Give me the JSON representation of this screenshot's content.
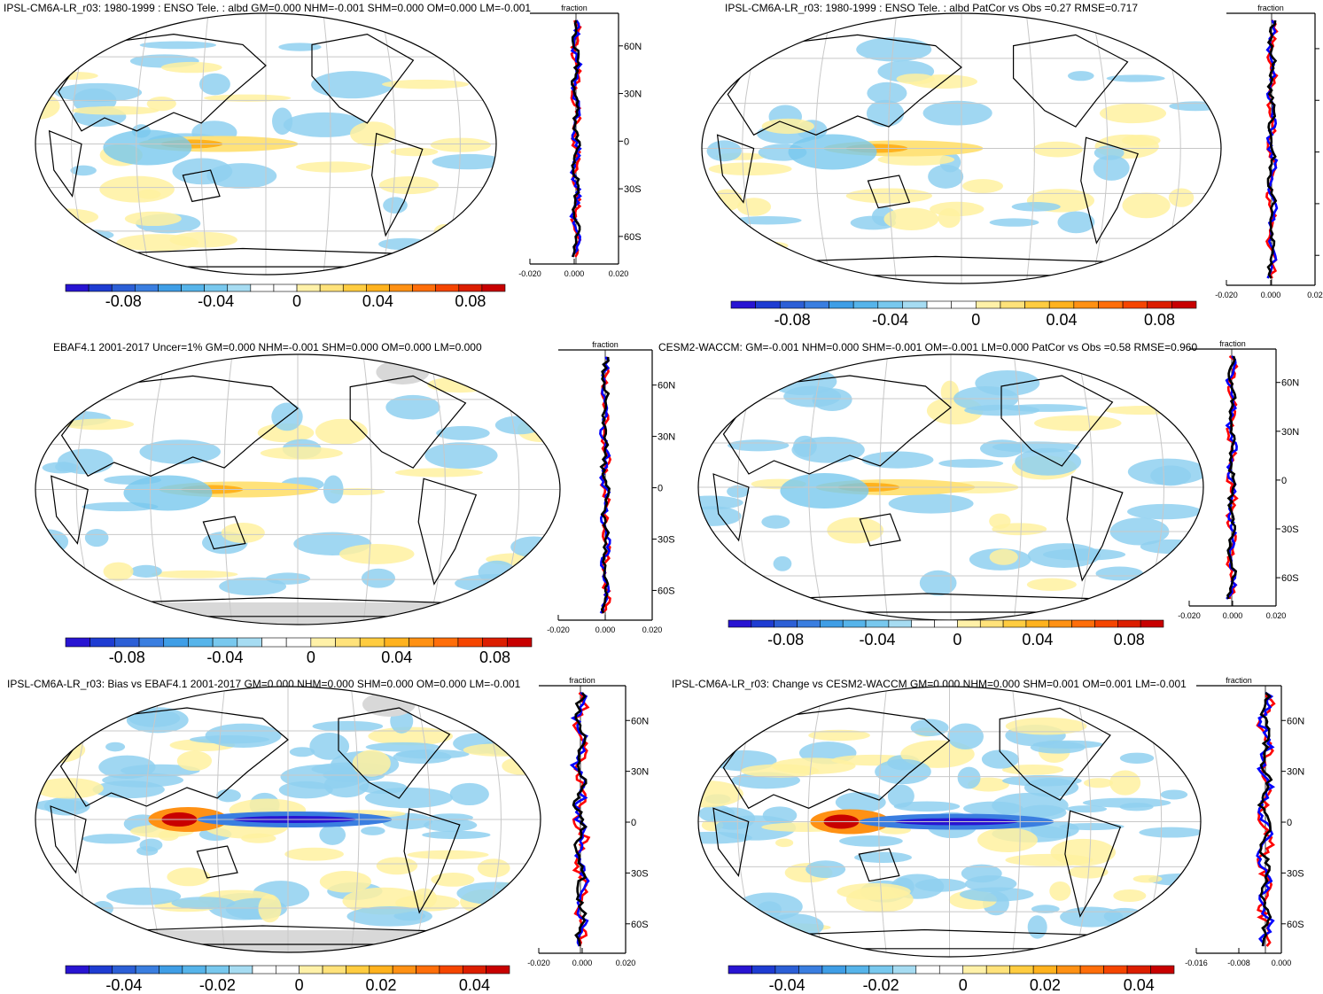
{
  "figure": {
    "colorbar_colors": [
      "#2814d2",
      "#1e3cd2",
      "#2c5fd6",
      "#3a7ee0",
      "#3f9ee6",
      "#56b4ea",
      "#78c8ee",
      "#a6dcf2",
      "#ffffff",
      "#ffffff",
      "#fff1a8",
      "#ffe27a",
      "#ffcc40",
      "#ffb21e",
      "#ff9114",
      "#ff6e0a",
      "#f54500",
      "#dc1e00",
      "#c80000"
    ],
    "colors": {
      "red": "#ff0000",
      "blue": "#0000ff",
      "black": "#000000",
      "land_mask": "#d8d8d8"
    }
  },
  "panels": [
    {
      "id": "p1",
      "title": "IPSL-CM6A-LR_r03: 1980-1999 : ENSO Tele. : albd GM=0.000 NHM=-0.001 SHM=0.000 OM=0.000 LM=-0.001",
      "colorbar_labels": [
        "-0.08",
        "-0.04",
        "0",
        "0.04",
        "0.08"
      ],
      "profile_label": "fraction",
      "profile_xticks": [
        "-0.020",
        "0.000",
        "0.020"
      ],
      "lat_labels": [
        "60N",
        "30N",
        "0",
        "30S",
        "60S"
      ],
      "masked": false
    },
    {
      "id": "p2",
      "title": "IPSL-CM6A-LR_r03: 1980-1999 : ENSO Tele. : albd PatCor vs Obs =0.27 RMSE=0.717",
      "colorbar_labels": [
        "-0.08",
        "-0.04",
        "0",
        "0.04",
        "0.08"
      ],
      "profile_label": "fraction",
      "profile_xticks": [
        "-0.020",
        "0.000",
        "0.02"
      ],
      "lat_labels": [],
      "masked": false
    },
    {
      "id": "p3",
      "title": "EBAF4.1 2001-2017 Uncer=1% GM=0.000 NHM=-0.001 SHM=0.000 OM=0.000 LM=0.000",
      "colorbar_labels": [
        "-0.08",
        "-0.04",
        "0",
        "0.04",
        "0.08"
      ],
      "profile_label": "fraction",
      "profile_xticks": [
        "-0.020",
        "0.000",
        "0.020"
      ],
      "lat_labels": [
        "60N",
        "30N",
        "0",
        "30S",
        "60S"
      ],
      "masked": true
    },
    {
      "id": "p4",
      "title": "CESM2-WACCM: GM=-0.001 NHM=0.000 SHM=-0.001 OM=-0.001 LM=0.000 PatCor vs Obs =0.58 RMSE=0.960",
      "colorbar_labels": [
        "-0.08",
        "-0.04",
        "0",
        "0.04",
        "0.08"
      ],
      "profile_label": "fraction",
      "profile_xticks": [
        "-0.020",
        "0.000",
        "0.020"
      ],
      "lat_labels": [
        "60N",
        "30N",
        "0",
        "30S",
        "60S"
      ],
      "masked": false
    },
    {
      "id": "p5",
      "title": "IPSL-CM6A-LR_r03: Bias vs EBAF4.1 2001-2017 GM=0.000 NHM=0.000 SHM=0.000 OM=0.000 LM=-0.001",
      "colorbar_labels": [
        "-0.04",
        "-0.02",
        "0",
        "0.02",
        "0.04"
      ],
      "profile_label": "fraction",
      "profile_xticks": [
        "-0.020",
        "0.000",
        "0.020"
      ],
      "lat_labels": [
        "60N",
        "30N",
        "0",
        "30S",
        "60S"
      ],
      "masked": true
    },
    {
      "id": "p6",
      "title": "IPSL-CM6A-LR_r03: Change vs CESM2-WACCM GM=0.000 NHM=0.000 SHM=0.001 OM=0.001 LM=-0.001",
      "colorbar_labels": [
        "-0.04",
        "-0.02",
        "0",
        "0.02",
        "0.04"
      ],
      "profile_label": "fraction",
      "profile_xticks": [
        "-0.016",
        "-0.008",
        "0.000"
      ],
      "lat_labels": [
        "60N",
        "30N",
        "0",
        "30S",
        "60S"
      ],
      "masked": false
    }
  ]
}
